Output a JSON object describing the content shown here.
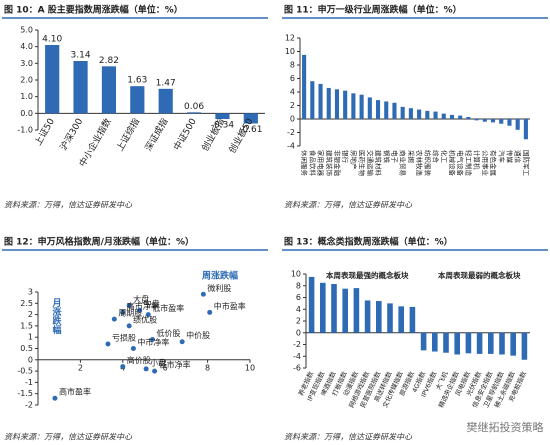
{
  "chart_data": [
    {
      "type": "bar",
      "title": "图 10：A 股主要指数周涨跌幅（单位：%）",
      "source": "资料来源：万得，信达证券研发中心",
      "categories": [
        "上证50",
        "沪深300",
        "中小企业指数",
        "上证综指",
        "深证成指",
        "中证500",
        "创业板指",
        "创业板50"
      ],
      "values": [
        4.1,
        3.14,
        2.82,
        1.63,
        1.47,
        0.06,
        -0.34,
        -0.61
      ],
      "value_labels": [
        "4.10",
        "3.14",
        "2.82",
        "1.63",
        "1.47",
        "0.06",
        "-0.34",
        "-0.61"
      ],
      "color": "#2e6bb4",
      "ylim": [
        -1,
        5
      ],
      "yticks": [
        {
          "value": -1,
          "label": "-1.0"
        },
        {
          "value": 0,
          "label": "0.0"
        },
        {
          "value": 1,
          "label": "1.0"
        },
        {
          "value": 2,
          "label": "2.0"
        },
        {
          "value": 3,
          "label": "3.0"
        },
        {
          "value": 4,
          "label": "4.0"
        },
        {
          "value": 5,
          "label": "5.0"
        }
      ]
    },
    {
      "type": "bar",
      "title": "图 11：申万一级行业周涨跌幅（单位：%）",
      "source": "资料来源：万得，信达证券研发中心",
      "categories": [
        "休闲服务",
        "食品饮料",
        "家用电器",
        "建筑装饰",
        "非银金融",
        "银行",
        "房地产",
        "医药生物",
        "交通运输",
        "建筑材料",
        "钢铁",
        "电子",
        "商业贸易",
        "采掘",
        "农林牧渔",
        "纺织服装",
        "综合",
        "化工",
        "机械设备",
        "电气设备",
        "轻工制造",
        "计算机",
        "公用事业",
        "有色金属",
        "汽车",
        "传媒",
        "通信",
        "国防军工"
      ],
      "values": [
        9.5,
        5.6,
        5.2,
        4.6,
        4.4,
        4.2,
        3.8,
        3.6,
        3.2,
        2.8,
        2.6,
        2.4,
        1.8,
        1.6,
        1.4,
        1.2,
        1.1,
        0.8,
        0.6,
        0.5,
        0.3,
        -0.2,
        -0.4,
        -0.5,
        -0.7,
        -1.0,
        -1.6,
        -3.0
      ],
      "color": "#2e6bb4",
      "ylim": [
        -4,
        12
      ],
      "yticks": [
        -4,
        -2,
        0,
        2,
        4,
        6,
        8,
        10,
        12
      ]
    },
    {
      "type": "scatter",
      "title": "图 12：申万风格指数周/月涨跌幅（单位：%）",
      "source": "资料来源：万得，信达证券研发中心",
      "x_label": "周涨跌幅",
      "y_label": "月涨跌幅",
      "labels": [
        "大盘",
        "高市净率",
        "中盘",
        "周期股",
        "低市盈率",
        "绩优股",
        "亏损股",
        "低价股",
        "中价股",
        "中市净率",
        "高价股",
        "小盘",
        "低市净率",
        "微利股",
        "中市盈率",
        "高市盈率"
      ],
      "x": [
        4.3,
        4.0,
        4.8,
        3.6,
        5.2,
        4.3,
        3.3,
        5.4,
        6.8,
        4.5,
        4.0,
        5.1,
        5.5,
        7.8,
        8.1,
        0.8
      ],
      "values": [
        2.4,
        2.1,
        2.2,
        1.8,
        2.0,
        1.5,
        0.7,
        0.9,
        0.8,
        0.5,
        -0.3,
        -0.4,
        -0.5,
        2.9,
        2.1,
        -1.7
      ],
      "color": "#2e6bb4",
      "xlim": [
        0,
        10
      ],
      "xticks": [
        0,
        2,
        4,
        6,
        8,
        10
      ],
      "ylim": [
        -2,
        3
      ],
      "yticks": [
        -2,
        -1.5,
        -1,
        -0.5,
        0,
        0.5,
        1,
        1.5,
        2,
        2.5,
        3
      ]
    },
    {
      "type": "bar",
      "title": "图 13：概念类指数周涨跌幅（单位：%）",
      "source": "资料来源：万得，信达证券研发中心",
      "annotations": [
        "本周表现最强的概念板块",
        "本周表现最弱的概念板块"
      ],
      "categories": [
        "养老指数",
        "IP变现指数",
        "啤酒指数",
        "打板指数",
        "动漫指数",
        "网络游戏指数",
        "民营医院指数",
        "高送转指数",
        "文化传媒指数",
        "旅游指数",
        "4G指数",
        "IPV6指数",
        "大飞机",
        "精选央企指数",
        "风电指数",
        "光伏指数",
        "信息安全指数",
        "卫星导航指数",
        "稀土永磁指数",
        "充电桩指数"
      ],
      "values": [
        9.5,
        8.5,
        8.3,
        7.5,
        7.6,
        5.5,
        5.4,
        5.0,
        4.5,
        4.4,
        -3.0,
        -3.2,
        -3.4,
        -3.7,
        -3.5,
        -3.6,
        -3.6,
        -3.7,
        -3.9,
        -4.6
      ],
      "color": "#2e6bb4",
      "ylim": [
        -6,
        10
      ],
      "yticks": [
        -6,
        -4,
        -2,
        0,
        2,
        4,
        6,
        8,
        10
      ]
    }
  ],
  "watermark": "樊继拓投资策略"
}
